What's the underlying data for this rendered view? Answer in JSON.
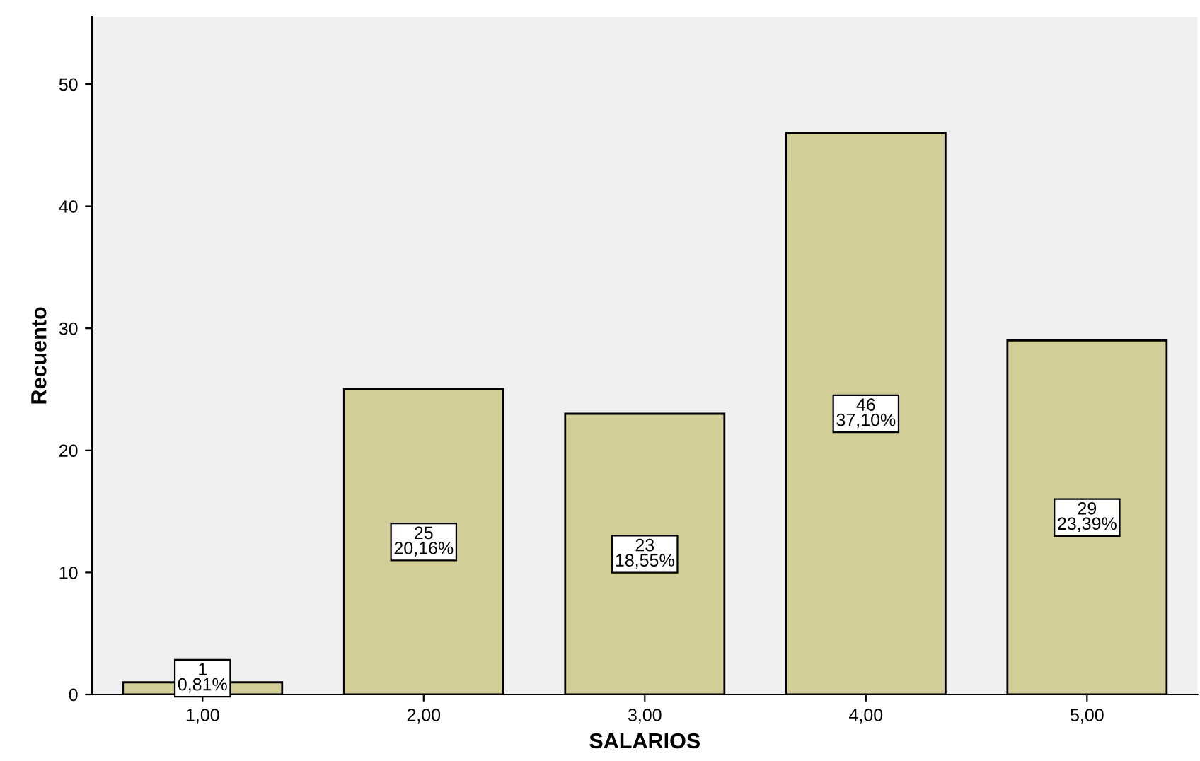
{
  "chart_data": {
    "type": "bar",
    "xlabel": "SALARIOS",
    "ylabel": "Recuento",
    "categories": [
      "1,00",
      "2,00",
      "3,00",
      "4,00",
      "5,00"
    ],
    "values": [
      1,
      25,
      23,
      46,
      29
    ],
    "value_labels": [
      "1\n0,81%",
      "25\n20,16%",
      "23\n18,55%",
      "46\n37,10%",
      "29\n23,39%"
    ],
    "color": "#d3ce97",
    "ylim": [
      0,
      55.5
    ],
    "yticks": [
      0,
      10,
      20,
      30,
      40,
      50
    ],
    "grid": false,
    "legend": false
  }
}
